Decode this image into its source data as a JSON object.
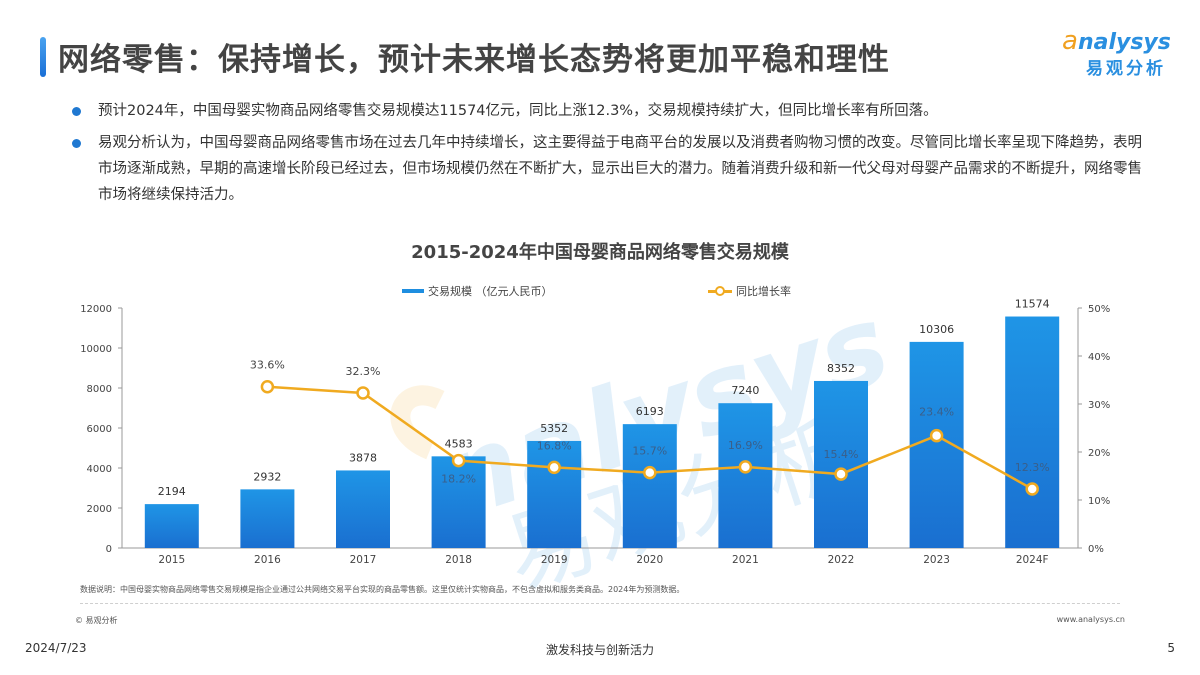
{
  "header": {
    "title": "网络零售：保持增长，预计未来增长态势将更加平稳和理性",
    "logo_en": "nalysys",
    "logo_en_initial": "a",
    "logo_cn": "易观分析"
  },
  "bullets": [
    "预计2024年，中国母婴实物商品网络零售交易规模达11574亿元，同比上涨12.3%，交易规模持续扩大，但同比增长率有所回落。",
    "易观分析认为，中国母婴商品网络零售市场在过去几年中持续增长，这主要得益于电商平台的发展以及消费者购物习惯的改变。尽管同比增长率呈现下降趋势，表明市场逐渐成熟，早期的高速增长阶段已经过去，但市场规模仍然在不断扩大，显示出巨大的潜力。随着消费升级和新一代父母对母婴产品需求的不断提升，网络零售市场将继续保持活力。"
  ],
  "colors": {
    "bar_top": "#1f95e6",
    "bar_bottom": "#1a70d0",
    "line": "#f0aa20",
    "accent": "#1f78d1"
  },
  "chart_data": {
    "type": "bar+line",
    "title": "2015-2024年中国母婴商品网络零售交易规模",
    "categories": [
      "2015",
      "2016",
      "2017",
      "2018",
      "2019",
      "2020",
      "2021",
      "2022",
      "2023",
      "2024F"
    ],
    "series": [
      {
        "name": "交易规模（亿元人民币）",
        "type": "bar",
        "axis": "left",
        "values": [
          2194,
          2932,
          3878,
          4583,
          5352,
          6193,
          7240,
          8352,
          10306,
          11574
        ],
        "labels": [
          "2194",
          "2932",
          "3878",
          "4583",
          "5352",
          "6193",
          "7240",
          "8352",
          "10306",
          "11574"
        ]
      },
      {
        "name": "同比增长率",
        "type": "line",
        "axis": "right",
        "values": [
          null,
          33.6,
          32.3,
          18.2,
          16.8,
          15.7,
          16.9,
          15.4,
          23.4,
          12.3
        ],
        "labels": [
          "",
          "33.6%",
          "32.3%",
          "18.2%",
          "16.8%",
          "15.7%",
          "16.9%",
          "15.4%",
          "23.4%",
          "12.3%"
        ]
      }
    ],
    "legend": [
      "交易规模 （亿元人民币）",
      "同比增长率"
    ],
    "left_axis": {
      "ticks": [
        "0",
        "2000",
        "4000",
        "6000",
        "8000",
        "10000",
        "12000"
      ],
      "ylim": [
        0,
        12000
      ]
    },
    "right_axis": {
      "ticks": [
        "0%",
        "10%",
        "20%",
        "30%",
        "40%",
        "50%"
      ],
      "ylim": [
        0,
        50
      ]
    },
    "xlabel": "",
    "ylabel": "",
    "grid": false,
    "legend_position": "top"
  },
  "footer": {
    "note": "数据说明：中国母婴实物商品网络零售交易规模是指企业通过公共网络交易平台实现的商品零售额。这里仅统计实物商品，不包含虚拟和服务类商品。2024年为预测数据。",
    "copyright": "© 易观分析",
    "website": "www.analysys.cn",
    "date": "2024/7/23",
    "slogan": "激发科技与创新活力",
    "page_number": "5"
  }
}
